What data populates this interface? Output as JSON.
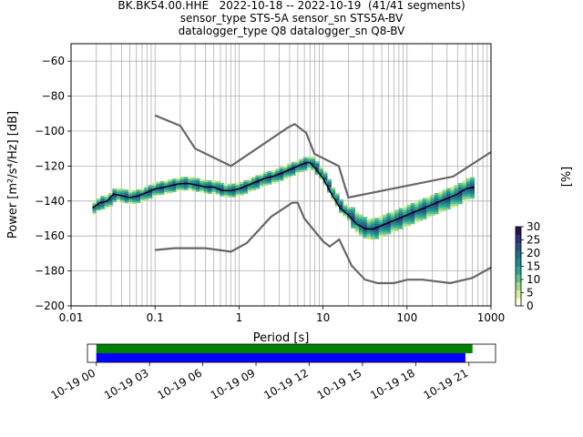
{
  "figure": {
    "title_lines": [
      "BK.BK54.00.HHE   2022-10-18 -- 2022-10-19  (41/41 segments)",
      "sensor_type STS-5A sensor_sn STS5A-BV",
      "datalogger_type Q8 datalogger_sn Q8-BV"
    ]
  },
  "chart_data": [
    {
      "type": "heatmap",
      "xlabel": "Period [s]",
      "ylabel": "Power [m²/s⁴/Hz] [dB]",
      "xscale": "log",
      "xlim": [
        0.01,
        1000
      ],
      "ylim": [
        -200,
        -50
      ],
      "xticks": [
        0.01,
        0.1,
        1,
        10,
        100,
        1000
      ],
      "xtick_labels": [
        "0.01",
        "0.1",
        "1",
        "10",
        "100",
        "1000"
      ],
      "yticks": [
        -200,
        -180,
        -160,
        -140,
        -120,
        -100,
        -80,
        -60
      ],
      "ytick_labels": [
        "−200",
        "−180",
        "−160",
        "−140",
        "−120",
        "−100",
        "−80",
        "−60"
      ],
      "grid": true,
      "colorbar": {
        "label": "[%]",
        "ticks": [
          0,
          5,
          10,
          15,
          20,
          25,
          30
        ],
        "range": [
          0,
          30
        ],
        "colors": [
          "#ffffe0",
          "#d7ef9c",
          "#9fd88a",
          "#5fc08d",
          "#2fa68f",
          "#1f8a8e",
          "#206f8c",
          "#2c4f85",
          "#30307a",
          "#2a1450"
        ]
      },
      "mode_curve": [
        [
          0.018,
          -144
        ],
        [
          0.022,
          -141
        ],
        [
          0.027,
          -140
        ],
        [
          0.032,
          -136
        ],
        [
          0.04,
          -137
        ],
        [
          0.05,
          -138
        ],
        [
          0.063,
          -137
        ],
        [
          0.08,
          -135
        ],
        [
          0.1,
          -133
        ],
        [
          0.13,
          -132
        ],
        [
          0.16,
          -131
        ],
        [
          0.2,
          -130
        ],
        [
          0.25,
          -130
        ],
        [
          0.32,
          -131
        ],
        [
          0.4,
          -132
        ],
        [
          0.5,
          -132
        ],
        [
          0.63,
          -134
        ],
        [
          0.8,
          -134
        ],
        [
          1.0,
          -133
        ],
        [
          1.26,
          -131
        ],
        [
          1.6,
          -129
        ],
        [
          2.0,
          -127
        ],
        [
          2.5,
          -126
        ],
        [
          3.2,
          -124
        ],
        [
          4.0,
          -122
        ],
        [
          5.0,
          -120
        ],
        [
          6.3,
          -118
        ],
        [
          7.0,
          -118
        ],
        [
          8.0,
          -121
        ],
        [
          10,
          -127
        ],
        [
          12.6,
          -136
        ],
        [
          16,
          -144
        ],
        [
          20,
          -148
        ],
        [
          25,
          -153
        ],
        [
          32,
          -156
        ],
        [
          40,
          -156
        ],
        [
          50,
          -154
        ],
        [
          63,
          -152
        ],
        [
          80,
          -150
        ],
        [
          100,
          -148
        ],
        [
          126,
          -146
        ],
        [
          160,
          -144
        ],
        [
          200,
          -142
        ],
        [
          250,
          -140
        ],
        [
          320,
          -138
        ],
        [
          400,
          -136
        ],
        [
          500,
          -133
        ],
        [
          630,
          -132
        ]
      ],
      "nhnm": [
        [
          0.1,
          -91
        ],
        [
          0.2,
          -97
        ],
        [
          0.3,
          -110
        ],
        [
          0.8,
          -120
        ],
        [
          3.8,
          -98
        ],
        [
          4.6,
          -96
        ],
        [
          6.3,
          -101
        ],
        [
          7.9,
          -113
        ],
        [
          15.4,
          -120
        ],
        [
          20,
          -138
        ],
        [
          354,
          -126
        ],
        [
          1000,
          -112
        ]
      ],
      "nlnm": [
        [
          0.1,
          -168
        ],
        [
          0.17,
          -167
        ],
        [
          0.4,
          -167
        ],
        [
          0.8,
          -169
        ],
        [
          1.24,
          -164
        ],
        [
          2.4,
          -149
        ],
        [
          4.3,
          -141
        ],
        [
          5.0,
          -141
        ],
        [
          6.0,
          -150
        ],
        [
          10,
          -163
        ],
        [
          12,
          -166
        ],
        [
          15.6,
          -162
        ],
        [
          21.9,
          -177
        ],
        [
          31.6,
          -185
        ],
        [
          45,
          -187
        ],
        [
          70,
          -187
        ],
        [
          101,
          -185
        ],
        [
          154,
          -185
        ],
        [
          328,
          -187
        ],
        [
          600,
          -184
        ],
        [
          1000,
          -178
        ]
      ]
    },
    {
      "type": "bar",
      "xtick_labels": [
        "10-19 00",
        "10-19 03",
        "10-19 06",
        "10-19 09",
        "10-19 12",
        "10-19 15",
        "10-19 18",
        "10-19 21"
      ],
      "xlim_hours": [
        -0.5,
        22.5
      ],
      "series": [
        {
          "color": "#008000",
          "start_hours": 0,
          "end_hours": 21.2
        },
        {
          "color": "#0000ff",
          "start_hours": 0,
          "end_hours": 20.8
        }
      ]
    }
  ]
}
